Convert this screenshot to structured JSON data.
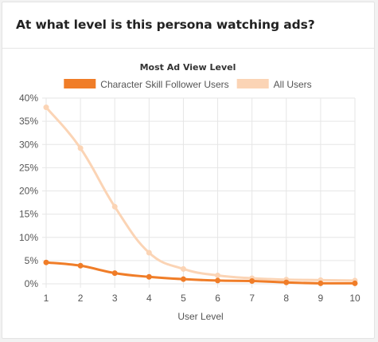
{
  "card": {
    "title": "At what level is this persona watching ads?"
  },
  "colors": {
    "series_primary": "#f07d28",
    "series_secondary": "#fbd4b5",
    "grid": "#e6e6e6"
  },
  "chart_data": {
    "type": "line",
    "title": "Most Ad View Level",
    "xlabel": "User Level",
    "ylabel": "",
    "x": [
      1,
      2,
      3,
      4,
      5,
      6,
      7,
      8,
      9,
      10
    ],
    "ylim": [
      0,
      40
    ],
    "yticks": [
      "0%",
      "5%",
      "10%",
      "15%",
      "20%",
      "25%",
      "30%",
      "35%",
      "40%"
    ],
    "grid": true,
    "legend_position": "top",
    "series": [
      {
        "name": "Character Skill Follower Users",
        "color": "#f07d28",
        "values": [
          4.6,
          3.9,
          2.3,
          1.5,
          1.0,
          0.7,
          0.6,
          0.3,
          0.1,
          0.1
        ]
      },
      {
        "name": "All Users",
        "color": "#fbd4b5",
        "values": [
          38.0,
          29.2,
          16.6,
          6.7,
          3.2,
          1.8,
          1.2,
          0.9,
          0.8,
          0.7
        ]
      }
    ]
  }
}
